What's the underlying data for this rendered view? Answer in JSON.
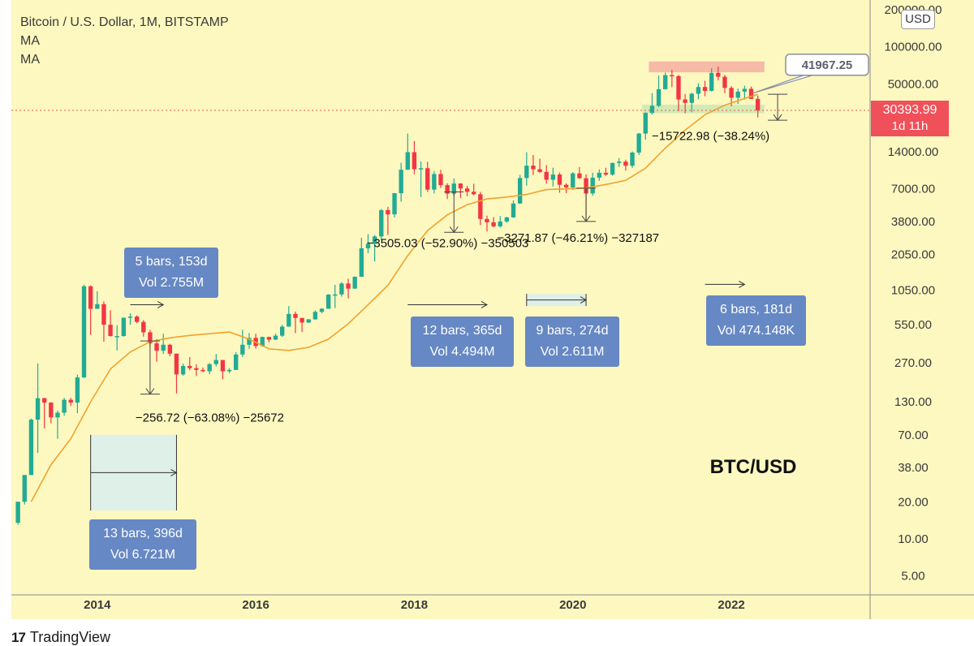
{
  "header": {
    "title": "Bitcoin / U.S. Dollar, 1M, BITSTAMP",
    "ma1": "MA",
    "ma2": "MA"
  },
  "footer": {
    "brand": "TradingView",
    "logo_glyph": "17"
  },
  "axis_unit_button": "USD",
  "colors": {
    "background": "#fdf8c0",
    "up": "#22ab94",
    "down": "#f23645",
    "ma": "#f0a22c",
    "box": "#6688c4",
    "last_price": "#f0505a"
  },
  "chart_data": {
    "type": "candlestick",
    "symbol": "BTC/USD",
    "exchange": "BITSTAMP",
    "interval": "1M",
    "y_scale": "log",
    "ylim": [
      3.5,
      240000
    ],
    "y_ticks": [
      "200000.00",
      "100000.00",
      "50000.00",
      "14000.00",
      "7000.00",
      "3800.00",
      "2050.00",
      "1050.00",
      "550.00",
      "270.00",
      "130.00",
      "70.00",
      "38.00",
      "20.00",
      "10.00",
      "5.00"
    ],
    "x_ticks": [
      "2014",
      "2016",
      "2018",
      "2020",
      "2022"
    ],
    "candles": [
      {
        "d": "2013-01",
        "o": 13.5,
        "h": 20,
        "l": 13,
        "c": 20
      },
      {
        "d": "2013-02",
        "o": 20,
        "h": 33,
        "l": 19,
        "c": 33
      },
      {
        "d": "2013-03",
        "o": 33,
        "h": 95,
        "l": 33,
        "c": 93
      },
      {
        "d": "2013-04",
        "o": 93,
        "h": 266,
        "l": 50,
        "c": 139
      },
      {
        "d": "2013-05",
        "o": 139,
        "h": 140,
        "l": 79,
        "c": 128
      },
      {
        "d": "2013-06",
        "o": 128,
        "h": 129,
        "l": 87,
        "c": 97
      },
      {
        "d": "2013-07",
        "o": 97,
        "h": 110,
        "l": 65,
        "c": 106
      },
      {
        "d": "2013-08",
        "o": 106,
        "h": 140,
        "l": 100,
        "c": 135
      },
      {
        "d": "2013-09",
        "o": 135,
        "h": 140,
        "l": 120,
        "c": 128
      },
      {
        "d": "2013-10",
        "o": 128,
        "h": 216,
        "l": 105,
        "c": 205
      },
      {
        "d": "2013-11",
        "o": 205,
        "h": 1163,
        "l": 203,
        "c": 1130
      },
      {
        "d": "2013-12",
        "o": 1130,
        "h": 1150,
        "l": 455,
        "c": 740
      },
      {
        "d": "2014-01",
        "o": 740,
        "h": 1030,
        "l": 740,
        "c": 808
      },
      {
        "d": "2014-02",
        "o": 808,
        "h": 850,
        "l": 400,
        "c": 550
      },
      {
        "d": "2014-03",
        "o": 550,
        "h": 720,
        "l": 440,
        "c": 445
      },
      {
        "d": "2014-04",
        "o": 445,
        "h": 545,
        "l": 340,
        "c": 445
      },
      {
        "d": "2014-05",
        "o": 445,
        "h": 630,
        "l": 440,
        "c": 627
      },
      {
        "d": "2014-06",
        "o": 627,
        "h": 680,
        "l": 550,
        "c": 640
      },
      {
        "d": "2014-07",
        "o": 640,
        "h": 655,
        "l": 565,
        "c": 580
      },
      {
        "d": "2014-08",
        "o": 580,
        "h": 600,
        "l": 440,
        "c": 477
      },
      {
        "d": "2014-09",
        "o": 477,
        "h": 500,
        "l": 365,
        "c": 388
      },
      {
        "d": "2014-10",
        "o": 388,
        "h": 420,
        "l": 275,
        "c": 338
      },
      {
        "d": "2014-11",
        "o": 338,
        "h": 465,
        "l": 318,
        "c": 378
      },
      {
        "d": "2014-12",
        "o": 378,
        "h": 385,
        "l": 305,
        "c": 320
      },
      {
        "d": "2015-01",
        "o": 320,
        "h": 320,
        "l": 152,
        "c": 217
      },
      {
        "d": "2015-02",
        "o": 217,
        "h": 265,
        "l": 212,
        "c": 254
      },
      {
        "d": "2015-03",
        "o": 254,
        "h": 300,
        "l": 235,
        "c": 244
      },
      {
        "d": "2015-04",
        "o": 244,
        "h": 262,
        "l": 210,
        "c": 236
      },
      {
        "d": "2015-05",
        "o": 236,
        "h": 247,
        "l": 226,
        "c": 230
      },
      {
        "d": "2015-06",
        "o": 230,
        "h": 268,
        "l": 218,
        "c": 263
      },
      {
        "d": "2015-07",
        "o": 263,
        "h": 318,
        "l": 252,
        "c": 284
      },
      {
        "d": "2015-08",
        "o": 284,
        "h": 285,
        "l": 198,
        "c": 230
      },
      {
        "d": "2015-09",
        "o": 230,
        "h": 244,
        "l": 222,
        "c": 236
      },
      {
        "d": "2015-10",
        "o": 236,
        "h": 330,
        "l": 235,
        "c": 315
      },
      {
        "d": "2015-11",
        "o": 315,
        "h": 500,
        "l": 300,
        "c": 378
      },
      {
        "d": "2015-12",
        "o": 378,
        "h": 470,
        "l": 350,
        "c": 430
      },
      {
        "d": "2016-01",
        "o": 430,
        "h": 465,
        "l": 352,
        "c": 369
      },
      {
        "d": "2016-02",
        "o": 369,
        "h": 440,
        "l": 365,
        "c": 437
      },
      {
        "d": "2016-03",
        "o": 437,
        "h": 440,
        "l": 395,
        "c": 416
      },
      {
        "d": "2016-04",
        "o": 416,
        "h": 465,
        "l": 412,
        "c": 448
      },
      {
        "d": "2016-05",
        "o": 448,
        "h": 550,
        "l": 438,
        "c": 531
      },
      {
        "d": "2016-06",
        "o": 531,
        "h": 780,
        "l": 530,
        "c": 673
      },
      {
        "d": "2016-07",
        "o": 673,
        "h": 703,
        "l": 470,
        "c": 624
      },
      {
        "d": "2016-08",
        "o": 624,
        "h": 626,
        "l": 480,
        "c": 573
      },
      {
        "d": "2016-09",
        "o": 573,
        "h": 612,
        "l": 566,
        "c": 608
      },
      {
        "d": "2016-10",
        "o": 608,
        "h": 720,
        "l": 605,
        "c": 700
      },
      {
        "d": "2016-11",
        "o": 700,
        "h": 750,
        "l": 680,
        "c": 742
      },
      {
        "d": "2016-12",
        "o": 742,
        "h": 975,
        "l": 740,
        "c": 966
      },
      {
        "d": "2017-01",
        "o": 966,
        "h": 1160,
        "l": 750,
        "c": 970
      },
      {
        "d": "2017-02",
        "o": 970,
        "h": 1220,
        "l": 930,
        "c": 1190
      },
      {
        "d": "2017-03",
        "o": 1190,
        "h": 1300,
        "l": 900,
        "c": 1080
      },
      {
        "d": "2017-04",
        "o": 1080,
        "h": 1360,
        "l": 1080,
        "c": 1350
      },
      {
        "d": "2017-05",
        "o": 1350,
        "h": 2800,
        "l": 1350,
        "c": 2300
      },
      {
        "d": "2017-06",
        "o": 2300,
        "h": 3000,
        "l": 2100,
        "c": 2500
      },
      {
        "d": "2017-07",
        "o": 2500,
        "h": 2950,
        "l": 1800,
        "c": 2870
      },
      {
        "d": "2017-08",
        "o": 2870,
        "h": 4800,
        "l": 2670,
        "c": 4700
      },
      {
        "d": "2017-09",
        "o": 4700,
        "h": 5000,
        "l": 2950,
        "c": 4340
      },
      {
        "d": "2017-10",
        "o": 4340,
        "h": 6470,
        "l": 4100,
        "c": 6450
      },
      {
        "d": "2017-11",
        "o": 6450,
        "h": 11400,
        "l": 5500,
        "c": 10000
      },
      {
        "d": "2017-12",
        "o": 10000,
        "h": 19700,
        "l": 10000,
        "c": 13900
      },
      {
        "d": "2018-01",
        "o": 13900,
        "h": 17100,
        "l": 9200,
        "c": 10100
      },
      {
        "d": "2018-02",
        "o": 10100,
        "h": 11700,
        "l": 6000,
        "c": 10300
      },
      {
        "d": "2018-03",
        "o": 10300,
        "h": 11600,
        "l": 6600,
        "c": 6900
      },
      {
        "d": "2018-04",
        "o": 6900,
        "h": 9750,
        "l": 6430,
        "c": 9240
      },
      {
        "d": "2018-05",
        "o": 9240,
        "h": 9990,
        "l": 7100,
        "c": 7500
      },
      {
        "d": "2018-06",
        "o": 7500,
        "h": 7760,
        "l": 5780,
        "c": 6390
      },
      {
        "d": "2018-07",
        "o": 6390,
        "h": 8500,
        "l": 6080,
        "c": 7730
      },
      {
        "d": "2018-08",
        "o": 7730,
        "h": 7760,
        "l": 5880,
        "c": 7040
      },
      {
        "d": "2018-09",
        "o": 7040,
        "h": 7400,
        "l": 6100,
        "c": 6630
      },
      {
        "d": "2018-10",
        "o": 6630,
        "h": 7700,
        "l": 6200,
        "c": 6320
      },
      {
        "d": "2018-11",
        "o": 6320,
        "h": 6610,
        "l": 3550,
        "c": 3980
      },
      {
        "d": "2018-12",
        "o": 3980,
        "h": 4240,
        "l": 3150,
        "c": 3740
      },
      {
        "d": "2019-01",
        "o": 3740,
        "h": 4120,
        "l": 3400,
        "c": 3470
      },
      {
        "d": "2019-02",
        "o": 3470,
        "h": 4210,
        "l": 3390,
        "c": 3800
      },
      {
        "d": "2019-03",
        "o": 3800,
        "h": 4150,
        "l": 3700,
        "c": 4100
      },
      {
        "d": "2019-04",
        "o": 4100,
        "h": 5650,
        "l": 4080,
        "c": 5320
      },
      {
        "d": "2019-05",
        "o": 5320,
        "h": 9100,
        "l": 5270,
        "c": 8570
      },
      {
        "d": "2019-06",
        "o": 8570,
        "h": 13900,
        "l": 7450,
        "c": 10800
      },
      {
        "d": "2019-07",
        "o": 10800,
        "h": 13200,
        "l": 9070,
        "c": 10100
      },
      {
        "d": "2019-08",
        "o": 10100,
        "h": 12300,
        "l": 9400,
        "c": 9600
      },
      {
        "d": "2019-09",
        "o": 9600,
        "h": 10900,
        "l": 7700,
        "c": 8300
      },
      {
        "d": "2019-10",
        "o": 8300,
        "h": 10400,
        "l": 7300,
        "c": 9150
      },
      {
        "d": "2019-11",
        "o": 9150,
        "h": 9500,
        "l": 6510,
        "c": 7550
      },
      {
        "d": "2019-12",
        "o": 7550,
        "h": 7750,
        "l": 6450,
        "c": 7190
      },
      {
        "d": "2020-01",
        "o": 7190,
        "h": 9570,
        "l": 6850,
        "c": 9350
      },
      {
        "d": "2020-02",
        "o": 9350,
        "h": 10500,
        "l": 8450,
        "c": 8540
      },
      {
        "d": "2020-03",
        "o": 8540,
        "h": 9170,
        "l": 3850,
        "c": 6420
      },
      {
        "d": "2020-04",
        "o": 6420,
        "h": 9460,
        "l": 6150,
        "c": 8630
      },
      {
        "d": "2020-05",
        "o": 8630,
        "h": 10070,
        "l": 8130,
        "c": 9450
      },
      {
        "d": "2020-06",
        "o": 9450,
        "h": 10380,
        "l": 8900,
        "c": 9140
      },
      {
        "d": "2020-07",
        "o": 9140,
        "h": 11450,
        "l": 8980,
        "c": 11350
      },
      {
        "d": "2020-08",
        "o": 11350,
        "h": 12470,
        "l": 10540,
        "c": 11650
      },
      {
        "d": "2020-09",
        "o": 11650,
        "h": 12070,
        "l": 9850,
        "c": 10780
      },
      {
        "d": "2020-10",
        "o": 10780,
        "h": 14100,
        "l": 10370,
        "c": 13800
      },
      {
        "d": "2020-11",
        "o": 13800,
        "h": 19900,
        "l": 13200,
        "c": 19700
      },
      {
        "d": "2020-12",
        "o": 19700,
        "h": 29300,
        "l": 17600,
        "c": 28990
      },
      {
        "d": "2021-01",
        "o": 28990,
        "h": 41950,
        "l": 28130,
        "c": 33100
      },
      {
        "d": "2021-02",
        "o": 33100,
        "h": 58300,
        "l": 32300,
        "c": 45200
      },
      {
        "d": "2021-03",
        "o": 45200,
        "h": 61700,
        "l": 45000,
        "c": 58800
      },
      {
        "d": "2021-04",
        "o": 58800,
        "h": 64900,
        "l": 47000,
        "c": 57700
      },
      {
        "d": "2021-05",
        "o": 57700,
        "h": 59000,
        "l": 30000,
        "c": 37300
      },
      {
        "d": "2021-06",
        "o": 37300,
        "h": 41300,
        "l": 28800,
        "c": 35000
      },
      {
        "d": "2021-07",
        "o": 35000,
        "h": 42300,
        "l": 29300,
        "c": 41500
      },
      {
        "d": "2021-08",
        "o": 41500,
        "h": 50500,
        "l": 37400,
        "c": 47100
      },
      {
        "d": "2021-09",
        "o": 47100,
        "h": 52900,
        "l": 39600,
        "c": 43800
      },
      {
        "d": "2021-10",
        "o": 43800,
        "h": 66900,
        "l": 43300,
        "c": 61300
      },
      {
        "d": "2021-11",
        "o": 61300,
        "h": 69000,
        "l": 53300,
        "c": 57000
      },
      {
        "d": "2021-12",
        "o": 57000,
        "h": 59000,
        "l": 42000,
        "c": 46300
      },
      {
        "d": "2022-01",
        "o": 46300,
        "h": 47900,
        "l": 32900,
        "c": 38500
      },
      {
        "d": "2022-02",
        "o": 38500,
        "h": 45800,
        "l": 34300,
        "c": 43200
      },
      {
        "d": "2022-03",
        "o": 43200,
        "h": 48200,
        "l": 37200,
        "c": 45500
      },
      {
        "d": "2022-04",
        "o": 45500,
        "h": 47500,
        "l": 37700,
        "c": 37700
      },
      {
        "d": "2022-05",
        "o": 37700,
        "h": 40000,
        "l": 26700,
        "c": 30394
      }
    ],
    "moving_average": [
      {
        "d": "2013-03",
        "v": 20
      },
      {
        "d": "2013-06",
        "v": 40
      },
      {
        "d": "2013-09",
        "v": 65
      },
      {
        "d": "2013-12",
        "v": 130
      },
      {
        "d": "2014-03",
        "v": 240
      },
      {
        "d": "2014-06",
        "v": 330
      },
      {
        "d": "2014-09",
        "v": 400
      },
      {
        "d": "2014-12",
        "v": 430
      },
      {
        "d": "2015-03",
        "v": 450
      },
      {
        "d": "2015-06",
        "v": 465
      },
      {
        "d": "2015-09",
        "v": 480
      },
      {
        "d": "2015-12",
        "v": 420
      },
      {
        "d": "2016-03",
        "v": 350
      },
      {
        "d": "2016-06",
        "v": 340
      },
      {
        "d": "2016-09",
        "v": 360
      },
      {
        "d": "2016-12",
        "v": 420
      },
      {
        "d": "2017-03",
        "v": 560
      },
      {
        "d": "2017-06",
        "v": 800
      },
      {
        "d": "2017-09",
        "v": 1150
      },
      {
        "d": "2017-12",
        "v": 2000
      },
      {
        "d": "2018-03",
        "v": 3200
      },
      {
        "d": "2018-06",
        "v": 4300
      },
      {
        "d": "2018-09",
        "v": 5200
      },
      {
        "d": "2018-12",
        "v": 5800
      },
      {
        "d": "2019-03",
        "v": 6000
      },
      {
        "d": "2019-06",
        "v": 6300
      },
      {
        "d": "2019-09",
        "v": 6900
      },
      {
        "d": "2019-12",
        "v": 7000
      },
      {
        "d": "2020-03",
        "v": 7100
      },
      {
        "d": "2020-06",
        "v": 7600
      },
      {
        "d": "2020-09",
        "v": 8200
      },
      {
        "d": "2020-12",
        "v": 10300
      },
      {
        "d": "2021-03",
        "v": 15000
      },
      {
        "d": "2021-06",
        "v": 21000
      },
      {
        "d": "2021-09",
        "v": 28000
      },
      {
        "d": "2021-12",
        "v": 33500
      },
      {
        "d": "2022-03",
        "v": 38000
      },
      {
        "d": "2022-05",
        "v": 41000
      }
    ],
    "last_price": {
      "value": "30393.99",
      "countdown": "1d 11h",
      "v": 30393.99
    },
    "price_callout": {
      "value": "41967.25",
      "v": 41967.25
    },
    "resistance_zone": {
      "from": "2021-01",
      "to": "2022-06",
      "low": 62000,
      "high": 76000
    },
    "support_zone": {
      "from": "2020-12",
      "to": "2022-06",
      "low": 28800,
      "high": 33800
    },
    "drawdowns": [
      {
        "label": "−256.72 (−63.08%) −25672",
        "d": "2014-09",
        "from": 406,
        "to": 150
      },
      {
        "label": "−3505.03 (−52.90%) −350503",
        "d": "2018-07",
        "from": 6600,
        "to": 3100
      },
      {
        "label": "−3271.87 (−46.21%) −327187",
        "d": "2020-03",
        "from": 7080,
        "to": 3800
      },
      {
        "label": "−15722.98 (−38.24%)",
        "d": "2022-08",
        "from": 41100,
        "to": 25300
      }
    ],
    "date_ranges": [
      {
        "label": "13 bars, 396d",
        "vol": "Vol 6.721M",
        "from": "2013-12",
        "to": "2015-01",
        "low": 17,
        "high": 70
      },
      {
        "label": "5 bars, 153d",
        "vol": "Vol 2.755M",
        "from": "2014-06",
        "to": "2014-11",
        "level": 800
      },
      {
        "label": "12 bars, 365d",
        "vol": "Vol 4.494M",
        "from": "2017-12",
        "to": "2018-12",
        "level": 800
      },
      {
        "label": "9 bars, 274d",
        "vol": "Vol 2.611M",
        "from": "2019-06",
        "to": "2020-03",
        "low": 780,
        "high": 980
      },
      {
        "label": "6 bars, 181d",
        "vol": "Vol 474.148K",
        "from": "2021-09",
        "to": "2022-03",
        "level": 1170
      }
    ],
    "watermark": "BTC/USD"
  }
}
